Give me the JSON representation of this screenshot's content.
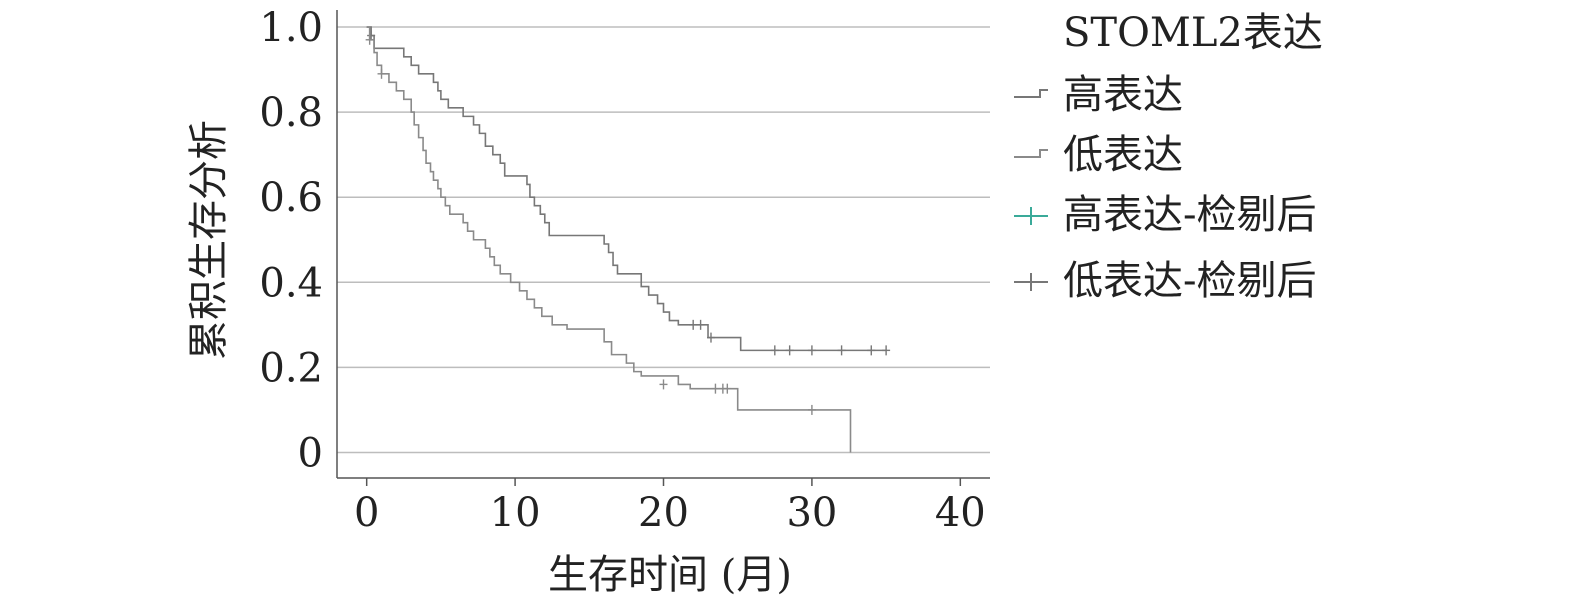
{
  "chart_data": {
    "type": "line",
    "subtype": "kaplan-meier",
    "title": "",
    "xlabel": "生存时间 (月)",
    "ylabel": "累积生存分析",
    "xlim": [
      -2,
      42
    ],
    "ylim": [
      -0.06,
      1.04
    ],
    "x_ticks": [
      0,
      10,
      20,
      30,
      40
    ],
    "x_tick_labels": [
      "0",
      "10",
      "20",
      "30",
      "40"
    ],
    "y_ticks": [
      0,
      0.2,
      0.4,
      0.6,
      0.8,
      1.0
    ],
    "y_tick_labels": [
      "0",
      "0.2",
      "0.4",
      "0.6",
      "0.8",
      "1.0"
    ],
    "grid": "horizontal",
    "legend": {
      "title": "STOML2表达",
      "position": "right",
      "entries": [
        {
          "label": "高表达",
          "marker": "step"
        },
        {
          "label": "低表达",
          "marker": "step"
        },
        {
          "label": "高表达-检剔后",
          "marker": "plus"
        },
        {
          "label": "低表达-检剔后",
          "marker": "plus"
        }
      ]
    },
    "colors": {
      "high": "#777777",
      "low": "#8a8a8a",
      "high_censor_legend": "#3aaa99",
      "grid": "#bdbdbd",
      "axis": "#555555"
    },
    "series": [
      {
        "key": "high",
        "steps": [
          [
            0,
            1.0
          ],
          [
            0.3,
            0.98
          ],
          [
            0.5,
            0.95
          ],
          [
            2.5,
            0.93
          ],
          [
            3.0,
            0.91
          ],
          [
            3.5,
            0.89
          ],
          [
            4.5,
            0.87
          ],
          [
            4.8,
            0.85
          ],
          [
            5.0,
            0.83
          ],
          [
            5.5,
            0.81
          ],
          [
            6.5,
            0.79
          ],
          [
            7.2,
            0.77
          ],
          [
            7.6,
            0.75
          ],
          [
            8.0,
            0.72
          ],
          [
            8.5,
            0.7
          ],
          [
            9.0,
            0.68
          ],
          [
            9.3,
            0.65
          ],
          [
            10.8,
            0.63
          ],
          [
            11.0,
            0.6
          ],
          [
            11.3,
            0.58
          ],
          [
            11.7,
            0.56
          ],
          [
            12.0,
            0.54
          ],
          [
            12.3,
            0.51
          ],
          [
            16.0,
            0.49
          ],
          [
            16.3,
            0.47
          ],
          [
            16.6,
            0.44
          ],
          [
            16.9,
            0.42
          ],
          [
            18.5,
            0.39
          ],
          [
            19.0,
            0.37
          ],
          [
            19.6,
            0.35
          ],
          [
            20.0,
            0.33
          ],
          [
            20.4,
            0.31
          ],
          [
            21.0,
            0.3
          ],
          [
            23.0,
            0.27
          ],
          [
            25.2,
            0.24
          ],
          [
            35.0,
            0.24
          ]
        ],
        "censored": [
          [
            0.3,
            0.98
          ],
          [
            22.0,
            0.3
          ],
          [
            22.5,
            0.3
          ],
          [
            23.2,
            0.27
          ],
          [
            27.5,
            0.24
          ],
          [
            28.5,
            0.24
          ],
          [
            30.0,
            0.24
          ],
          [
            32.0,
            0.24
          ],
          [
            34.0,
            0.24
          ],
          [
            35.0,
            0.24
          ]
        ]
      },
      {
        "key": "low",
        "steps": [
          [
            0,
            1.0
          ],
          [
            0.2,
            0.97
          ],
          [
            0.5,
            0.94
          ],
          [
            0.7,
            0.91
          ],
          [
            1.0,
            0.89
          ],
          [
            1.5,
            0.87
          ],
          [
            2.0,
            0.85
          ],
          [
            2.5,
            0.83
          ],
          [
            3.0,
            0.8
          ],
          [
            3.2,
            0.77
          ],
          [
            3.5,
            0.74
          ],
          [
            3.8,
            0.71
          ],
          [
            4.0,
            0.68
          ],
          [
            4.3,
            0.66
          ],
          [
            4.5,
            0.64
          ],
          [
            4.8,
            0.62
          ],
          [
            5.0,
            0.6
          ],
          [
            5.3,
            0.58
          ],
          [
            5.6,
            0.56
          ],
          [
            6.5,
            0.54
          ],
          [
            6.8,
            0.52
          ],
          [
            7.2,
            0.5
          ],
          [
            8.0,
            0.48
          ],
          [
            8.3,
            0.46
          ],
          [
            8.6,
            0.44
          ],
          [
            9.0,
            0.42
          ],
          [
            9.7,
            0.4
          ],
          [
            10.3,
            0.38
          ],
          [
            10.8,
            0.36
          ],
          [
            11.3,
            0.34
          ],
          [
            11.8,
            0.32
          ],
          [
            12.5,
            0.3
          ],
          [
            13.5,
            0.29
          ],
          [
            16.0,
            0.26
          ],
          [
            16.5,
            0.23
          ],
          [
            17.5,
            0.21
          ],
          [
            18.0,
            0.19
          ],
          [
            18.5,
            0.18
          ],
          [
            21.0,
            0.16
          ],
          [
            21.8,
            0.15
          ],
          [
            25.0,
            0.1
          ],
          [
            32.5,
            0.1
          ],
          [
            32.6,
            0.0
          ]
        ],
        "censored": [
          [
            0.2,
            0.97
          ],
          [
            1.0,
            0.89
          ],
          [
            20.0,
            0.16
          ],
          [
            23.5,
            0.15
          ],
          [
            24.0,
            0.15
          ],
          [
            24.3,
            0.15
          ],
          [
            30.0,
            0.1
          ]
        ]
      }
    ]
  }
}
